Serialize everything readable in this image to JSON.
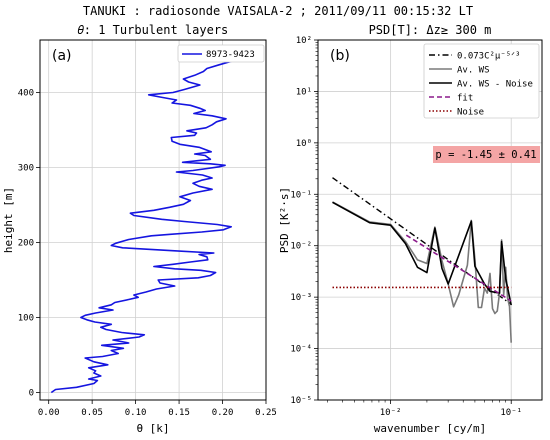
{
  "figure": {
    "title": "TANUKI : radiosonde VAISALA-2 ; 2011/09/11   00:15:32 LT"
  },
  "chart_data": [
    {
      "type": "line",
      "panel_label": "(a)",
      "title": "𝜃: 1 Turbulent layers",
      "xlabel": "θ   [k]",
      "ylabel": "height  [m]",
      "xlim": [
        -0.01,
        0.25
      ],
      "ylim": [
        -10,
        470
      ],
      "xticks": [
        "0.00",
        "0.05",
        "0.10",
        "0.15",
        "0.20",
        "0.25"
      ],
      "yticks": [
        "0",
        "100",
        "200",
        "300",
        "400"
      ],
      "grid": true,
      "legend_position": "top-right",
      "series": [
        {
          "name": "8973-9423",
          "color": "#1515e0",
          "points": [
            [
              0.003,
              0
            ],
            [
              0.008,
              4
            ],
            [
              0.032,
              7
            ],
            [
              0.052,
              12
            ],
            [
              0.056,
              16
            ],
            [
              0.046,
              18
            ],
            [
              0.06,
              22
            ],
            [
              0.052,
              26
            ],
            [
              0.054,
              29
            ],
            [
              0.046,
              33
            ],
            [
              0.068,
              37
            ],
            [
              0.052,
              41
            ],
            [
              0.042,
              46
            ],
            [
              0.062,
              48
            ],
            [
              0.08,
              52
            ],
            [
              0.072,
              56
            ],
            [
              0.086,
              59
            ],
            [
              0.061,
              63
            ],
            [
              0.092,
              66
            ],
            [
              0.074,
              70
            ],
            [
              0.104,
              74
            ],
            [
              0.11,
              77
            ],
            [
              0.084,
              80
            ],
            [
              0.066,
              84
            ],
            [
              0.06,
              87
            ],
            [
              0.072,
              91
            ],
            [
              0.053,
              94
            ],
            [
              0.044,
              97
            ],
            [
              0.037,
              100
            ],
            [
              0.042,
              103
            ],
            [
              0.054,
              106
            ],
            [
              0.074,
              110
            ],
            [
              0.058,
              113
            ],
            [
              0.072,
              117
            ],
            [
              0.076,
              120
            ],
            [
              0.092,
              124
            ],
            [
              0.103,
              127
            ],
            [
              0.098,
              130
            ],
            [
              0.112,
              134
            ],
            [
              0.124,
              138
            ],
            [
              0.145,
              142
            ],
            [
              0.128,
              146
            ],
            [
              0.126,
              150
            ],
            [
              0.172,
              153
            ],
            [
              0.186,
              156
            ],
            [
              0.192,
              160
            ],
            [
              0.175,
              163
            ],
            [
              0.145,
              165
            ],
            [
              0.121,
              168
            ],
            [
              0.143,
              171
            ],
            [
              0.163,
              174
            ],
            [
              0.183,
              177
            ],
            [
              0.182,
              181
            ],
            [
              0.173,
              184
            ],
            [
              0.19,
              186
            ],
            [
              0.145,
              189
            ],
            [
              0.085,
              193
            ],
            [
              0.072,
              196
            ],
            [
              0.077,
              199
            ],
            [
              0.092,
              204
            ],
            [
              0.118,
              209
            ],
            [
              0.14,
              211
            ],
            [
              0.176,
              214
            ],
            [
              0.201,
              217
            ],
            [
              0.21,
              221
            ],
            [
              0.194,
              224
            ],
            [
              0.156,
              228
            ],
            [
              0.13,
              231
            ],
            [
              0.098,
              236
            ],
            [
              0.094,
              239
            ],
            [
              0.121,
              243
            ],
            [
              0.139,
              247
            ],
            [
              0.155,
              251
            ],
            [
              0.163,
              256
            ],
            [
              0.151,
              261
            ],
            [
              0.166,
              266
            ],
            [
              0.188,
              271
            ],
            [
              0.173,
              275
            ],
            [
              0.166,
              279
            ],
            [
              0.176,
              283
            ],
            [
              0.188,
              286
            ],
            [
              0.177,
              290
            ],
            [
              0.147,
              294
            ],
            [
              0.166,
              296
            ],
            [
              0.196,
              301
            ],
            [
              0.203,
              303
            ],
            [
              0.186,
              305
            ],
            [
              0.154,
              307
            ],
            [
              0.186,
              311
            ],
            [
              0.18,
              316
            ],
            [
              0.168,
              318
            ],
            [
              0.187,
              321
            ],
            [
              0.173,
              327
            ],
            [
              0.151,
              331
            ],
            [
              0.142,
              335
            ],
            [
              0.141,
              340
            ],
            [
              0.168,
              343
            ],
            [
              0.17,
              346
            ],
            [
              0.159,
              349
            ],
            [
              0.181,
              353
            ],
            [
              0.188,
              357
            ],
            [
              0.193,
              361
            ],
            [
              0.204,
              365
            ],
            [
              0.188,
              369
            ],
            [
              0.167,
              372
            ],
            [
              0.18,
              376
            ],
            [
              0.174,
              379
            ],
            [
              0.163,
              383
            ],
            [
              0.142,
              386
            ],
            [
              0.147,
              390
            ],
            [
              0.128,
              394
            ],
            [
              0.115,
              397
            ],
            [
              0.143,
              400
            ],
            [
              0.156,
              404
            ],
            [
              0.174,
              410
            ],
            [
              0.161,
              414
            ],
            [
              0.155,
              418
            ],
            [
              0.168,
              423
            ],
            [
              0.178,
              428
            ],
            [
              0.182,
              432
            ],
            [
              0.196,
              437
            ],
            [
              0.214,
              443
            ],
            [
              0.226,
              447
            ],
            [
              0.236,
              450
            ]
          ]
        }
      ]
    },
    {
      "type": "line",
      "panel_label": "(b)",
      "title": "PSD[T]: Δz≥ 300 m",
      "xlabel": "wavenumber  [cy/m]",
      "ylabel": "PSD  [K²·s]",
      "xscale": "log",
      "yscale": "log",
      "xlim": [
        0.0025,
        0.18
      ],
      "ylim": [
        1e-05,
        100
      ],
      "xticks": [
        "10⁻²",
        "10⁻¹"
      ],
      "yticks": [
        "10⁻⁵",
        "10⁻⁴",
        "10⁻³",
        "10⁻²",
        "10⁻¹",
        "10⁰",
        "10¹",
        "10²"
      ],
      "grid": true,
      "legend_position": "top-right",
      "annotation": {
        "text": "p = -1.45 ± 0.41",
        "background": "#f4a5a5"
      },
      "series": [
        {
          "name": "0.073C²μ⁻⁵ᐟ³",
          "color": "#000000",
          "style": "dash-dot",
          "points": [
            [
              0.0033,
              0.21
            ],
            [
              0.1,
              0.00073
            ]
          ]
        },
        {
          "name": "Av. WS",
          "color": "#7a7a7a",
          "style": "solid",
          "points": [
            [
              0.0033,
              0.071
            ],
            [
              0.0067,
              0.029
            ],
            [
              0.01,
              0.026
            ],
            [
              0.0133,
              0.012
            ],
            [
              0.0167,
              0.0053
            ],
            [
              0.02,
              0.0045
            ],
            [
              0.0233,
              0.023
            ],
            [
              0.0267,
              0.0051
            ],
            [
              0.03,
              0.0018
            ],
            [
              0.0333,
              0.00065
            ],
            [
              0.0367,
              0.0011
            ],
            [
              0.04,
              0.0022
            ],
            [
              0.0433,
              0.0042
            ],
            [
              0.0467,
              0.031
            ],
            [
              0.05,
              0.0055
            ],
            [
              0.0533,
              0.00063
            ],
            [
              0.0567,
              0.00063
            ],
            [
              0.06,
              0.0015
            ],
            [
              0.0633,
              0.0012
            ],
            [
              0.0667,
              0.0029
            ],
            [
              0.07,
              0.0006
            ],
            [
              0.0733,
              0.00048
            ],
            [
              0.0767,
              0.00054
            ],
            [
              0.08,
              0.0012
            ],
            [
              0.0833,
              0.013
            ],
            [
              0.0867,
              0.0011
            ],
            [
              0.09,
              0.0038
            ],
            [
              0.0933,
              0.00095
            ],
            [
              0.0967,
              0.00066
            ],
            [
              0.1,
              0.00013
            ]
          ]
        },
        {
          "name": "Av. WS - Noise",
          "color": "#000000",
          "style": "solid",
          "points": [
            [
              0.0033,
              0.07
            ],
            [
              0.0067,
              0.028
            ],
            [
              0.01,
              0.025
            ],
            [
              0.0133,
              0.011
            ],
            [
              0.0167,
              0.0038
            ],
            [
              0.02,
              0.003
            ],
            [
              0.0233,
              0.022
            ],
            [
              0.0267,
              0.0036
            ],
            [
              0.03,
              0.0018
            ],
            [
              0.0467,
              0.03
            ],
            [
              0.05,
              0.004
            ],
            [
              0.06,
              0.0018
            ],
            [
              0.0667,
              0.0013
            ],
            [
              0.08,
              0.0012
            ],
            [
              0.0833,
              0.012
            ],
            [
              0.09,
              0.0023
            ],
            [
              0.1,
              0.0007
            ]
          ]
        },
        {
          "name": "fit",
          "color": "#8b1a8b",
          "style": "dashed",
          "points": [
            [
              0.0135,
              0.016
            ],
            [
              0.1,
              0.00084
            ]
          ]
        },
        {
          "name": "Noise",
          "color": "#8b0000",
          "style": "dotted",
          "points": [
            [
              0.0033,
              0.00155
            ],
            [
              0.1,
              0.00155
            ]
          ]
        }
      ]
    }
  ]
}
